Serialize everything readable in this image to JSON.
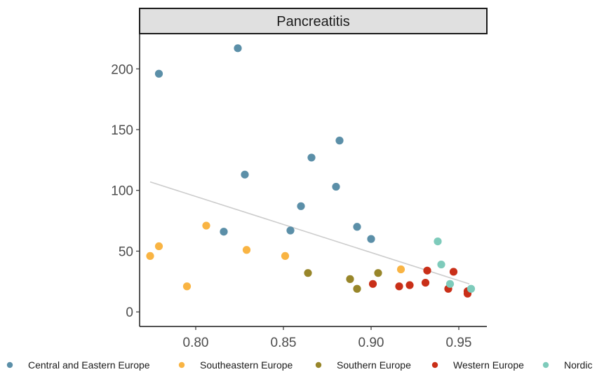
{
  "chart_data": {
    "type": "scatter",
    "title": "",
    "facet_label": "Pancreatitis",
    "xlabel": "",
    "ylabel": "",
    "xlim": [
      0.768,
      0.966
    ],
    "ylim": [
      -12,
      229
    ],
    "x_ticks": [
      0.8,
      0.85,
      0.9,
      0.95
    ],
    "x_tick_labels": [
      "0.80",
      "0.85",
      "0.90",
      "0.95"
    ],
    "y_ticks": [
      0,
      50,
      100,
      150,
      200
    ],
    "y_tick_labels": [
      "0",
      "50",
      "100",
      "150",
      "200"
    ],
    "grid": false,
    "legend_position": "bottom",
    "trend_line": {
      "x": [
        0.774,
        0.956
      ],
      "y": [
        107,
        23
      ],
      "color": "#cccccc"
    },
    "series": [
      {
        "name": "Central and Eastern Europe",
        "color": "#5b8fa8",
        "points": [
          [
            0.779,
            196
          ],
          [
            0.824,
            217
          ],
          [
            0.816,
            66
          ],
          [
            0.828,
            113
          ],
          [
            0.854,
            67
          ],
          [
            0.86,
            87
          ],
          [
            0.866,
            127
          ],
          [
            0.88,
            103
          ],
          [
            0.882,
            141
          ],
          [
            0.892,
            70
          ],
          [
            0.9,
            60
          ]
        ]
      },
      {
        "name": "Southeastern Europe",
        "color": "#f9b443",
        "points": [
          [
            0.774,
            46
          ],
          [
            0.779,
            54
          ],
          [
            0.795,
            21
          ],
          [
            0.806,
            71
          ],
          [
            0.829,
            51
          ],
          [
            0.851,
            46
          ],
          [
            0.917,
            35
          ]
        ]
      },
      {
        "name": "Southern Europe",
        "color": "#98862a",
        "points": [
          [
            0.864,
            32
          ],
          [
            0.888,
            27
          ],
          [
            0.892,
            19
          ],
          [
            0.904,
            32
          ]
        ]
      },
      {
        "name": "Western Europe",
        "color": "#c92f18",
        "points": [
          [
            0.901,
            23
          ],
          [
            0.916,
            21
          ],
          [
            0.922,
            22
          ],
          [
            0.931,
            24
          ],
          [
            0.932,
            34
          ],
          [
            0.944,
            19
          ],
          [
            0.947,
            33
          ],
          [
            0.955,
            17
          ],
          [
            0.955,
            15
          ]
        ]
      },
      {
        "name": "Nordic",
        "color": "#7ecbbb",
        "points": [
          [
            0.938,
            58
          ],
          [
            0.94,
            39
          ],
          [
            0.945,
            23
          ],
          [
            0.957,
            19
          ]
        ]
      }
    ]
  }
}
